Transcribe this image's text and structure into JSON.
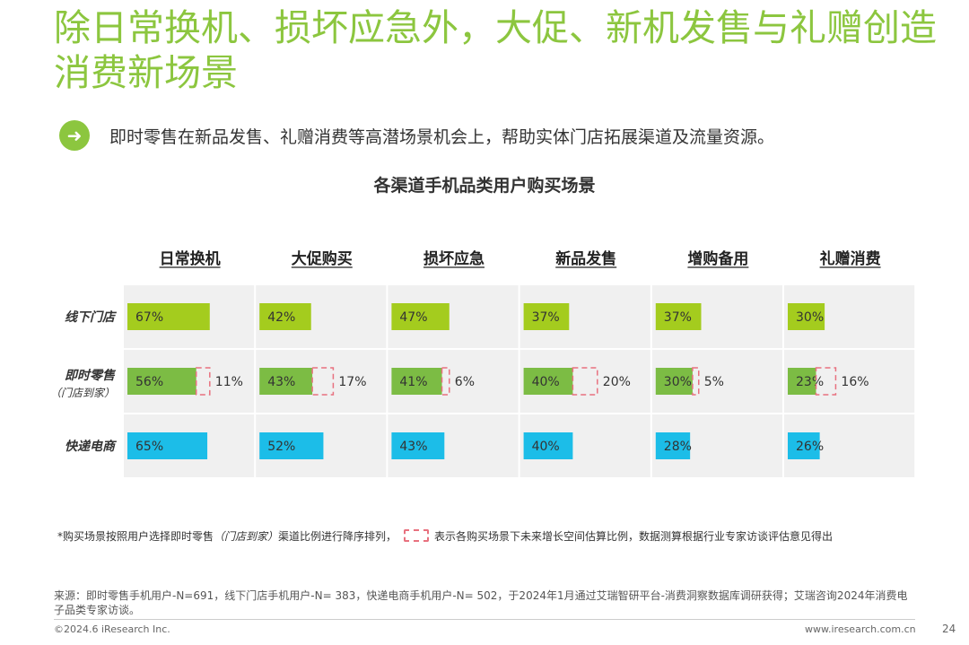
{
  "title": "除日常换机、损坏应急外，大促、新机发售与礼赠创造消费新场景",
  "subtitle": "即时零售在新品发售、礼赠消费等高潜场景机会上，帮助实体门店拓展渠道及流量资源。",
  "icons": {
    "subtitle_badge": "arrow-right-circle-icon"
  },
  "colors": {
    "accent": "#8cc63f",
    "offline": "#a4cc1e",
    "instant": "#7cbc44",
    "express": "#1cbde8",
    "growth_border": "#e8717f",
    "cell_bg": "#f0f0f0"
  },
  "chart_data": {
    "type": "bar",
    "title": "各渠道手机品类用户购买场景",
    "categories": [
      "日常换机",
      "大促购买",
      "损坏应急",
      "新品发售",
      "增购备用",
      "礼赠消费"
    ],
    "rows": [
      {
        "label": "线下门店",
        "sublabel": "",
        "values": [
          67,
          42,
          47,
          37,
          37,
          30
        ]
      },
      {
        "label": "即时零售",
        "sublabel": "（门店到家）",
        "values": [
          56,
          43,
          41,
          40,
          30,
          23
        ],
        "growth": [
          11,
          17,
          6,
          20,
          5,
          16
        ]
      },
      {
        "label": "快递电商",
        "sublabel": "",
        "values": [
          65,
          52,
          43,
          40,
          28,
          26
        ]
      }
    ],
    "value_labels": [
      [
        "67%",
        "42%",
        "47%",
        "37%",
        "37%",
        "30%"
      ],
      [
        "56%",
        "43%",
        "41%",
        "40%",
        "30%",
        "23%"
      ],
      [
        "65%",
        "52%",
        "43%",
        "40%",
        "28%",
        "26%"
      ]
    ],
    "growth_labels": [
      "11%",
      "17%",
      "6%",
      "20%",
      "5%",
      "16%"
    ],
    "ylim": [
      0,
      100
    ]
  },
  "footnote": {
    "prefix": "*购买场景按照用户选择即时零售",
    "italic": "（门店到家）",
    "middle": "渠道比例进行降序排列，",
    "suffix": "表示各购买场景下未来增长空间估算比例，数据测算根据行业专家访谈评估意见得出"
  },
  "source": "来源：即时零售手机用户-N=691，线下门店手机用户-N= 383，快递电商手机用户-N= 502，于2024年1月通过艾瑞智研平台-消费洞察数据库调研获得；艾瑞咨询2024年消费电子品类专家访谈。",
  "copyright": "©2024.6 iResearch Inc.",
  "website": "www.iresearch.com.cn",
  "page_number": "24"
}
